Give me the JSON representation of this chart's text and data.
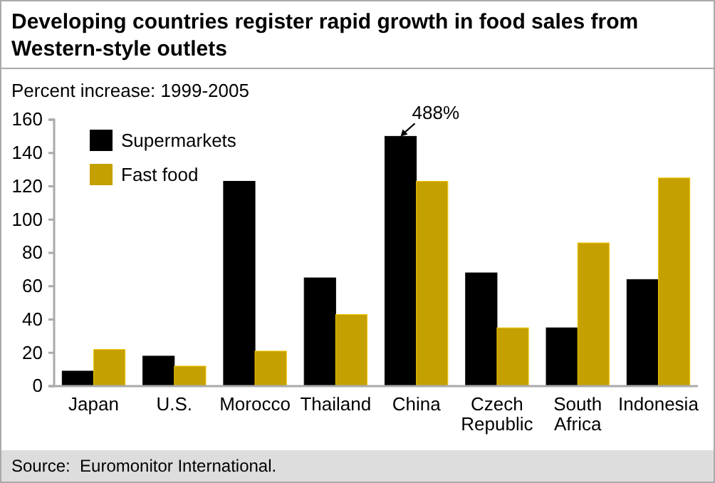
{
  "chart_data": {
    "type": "bar",
    "title": "Developing countries register rapid growth in food sales from Western-style outlets",
    "ylabel": "Percent increase: 1999-2005",
    "categories": [
      "Japan",
      "U.S.",
      "Morocco",
      "Thailand",
      "China",
      "Czech Republic",
      "South Africa",
      "Indonesia"
    ],
    "series": [
      {
        "name": "Supermarkets",
        "color": "#000000",
        "values": [
          9,
          18,
          123,
          65,
          150,
          68,
          35,
          64
        ]
      },
      {
        "name": "Fast food",
        "color": "#c4a000",
        "values": [
          22,
          12,
          21,
          43,
          123,
          35,
          86,
          125
        ]
      }
    ],
    "ylim": [
      0,
      160
    ],
    "yticks": [
      0,
      20,
      40,
      60,
      80,
      100,
      120,
      140,
      160
    ],
    "grid": false,
    "legend": "top left",
    "annotations": [
      {
        "text": "488%",
        "x": "China",
        "y": 150
      },
      "Source:  Euromonitor International."
    ]
  }
}
